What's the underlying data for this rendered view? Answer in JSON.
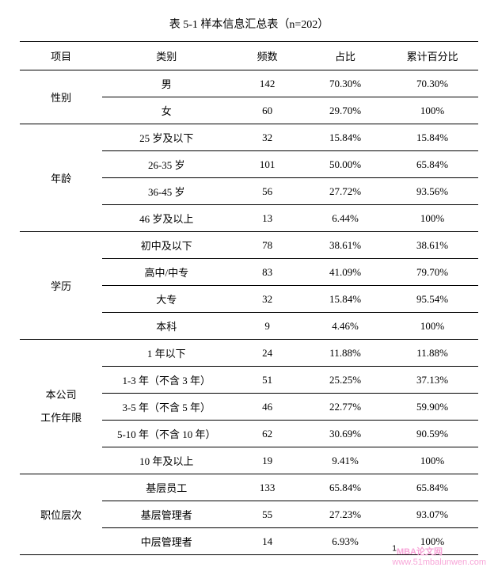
{
  "title": "表 5-1  样本信息汇总表（n=202）",
  "headers": {
    "group": "项目",
    "category": "类别",
    "freq": "频数",
    "pct": "占比",
    "cum": "累计百分比"
  },
  "groups": [
    {
      "name": "性别",
      "rows": [
        {
          "cat": "男",
          "freq": "142",
          "pct": "70.30%",
          "cum": "70.30%"
        },
        {
          "cat": "女",
          "freq": "60",
          "pct": "29.70%",
          "cum": "100%"
        }
      ]
    },
    {
      "name": "年龄",
      "rows": [
        {
          "cat": "25 岁及以下",
          "freq": "32",
          "pct": "15.84%",
          "cum": "15.84%"
        },
        {
          "cat": "26-35 岁",
          "freq": "101",
          "pct": "50.00%",
          "cum": "65.84%"
        },
        {
          "cat": "36-45 岁",
          "freq": "56",
          "pct": "27.72%",
          "cum": "93.56%"
        },
        {
          "cat": "46 岁及以上",
          "freq": "13",
          "pct": "6.44%",
          "cum": "100%"
        }
      ]
    },
    {
      "name": "学历",
      "rows": [
        {
          "cat": "初中及以下",
          "freq": "78",
          "pct": "38.61%",
          "cum": "38.61%"
        },
        {
          "cat": "高中/中专",
          "freq": "83",
          "pct": "41.09%",
          "cum": "79.70%"
        },
        {
          "cat": "大专",
          "freq": "32",
          "pct": "15.84%",
          "cum": "95.54%"
        },
        {
          "cat": "本科",
          "freq": "9",
          "pct": "4.46%",
          "cum": "100%"
        }
      ]
    },
    {
      "name": "本公司\n工作年限",
      "rows": [
        {
          "cat": "1 年以下",
          "freq": "24",
          "pct": "11.88%",
          "cum": "11.88%"
        },
        {
          "cat": "1-3 年（不含 3 年）",
          "freq": "51",
          "pct": "25.25%",
          "cum": "37.13%"
        },
        {
          "cat": "3-5 年（不含 5 年）",
          "freq": "46",
          "pct": "22.77%",
          "cum": "59.90%"
        },
        {
          "cat": "5-10 年（不含 10 年）",
          "freq": "62",
          "pct": "30.69%",
          "cum": "90.59%"
        },
        {
          "cat": "10 年及以上",
          "freq": "19",
          "pct": "9.41%",
          "cum": "100%"
        }
      ]
    },
    {
      "name": "职位层次",
      "rows": [
        {
          "cat": "基层员工",
          "freq": "133",
          "pct": "65.84%",
          "cum": "65.84%"
        },
        {
          "cat": "基层管理者",
          "freq": "55",
          "pct": "27.23%",
          "cum": "93.07%"
        },
        {
          "cat": "中层管理者",
          "freq": "14",
          "pct": "6.93%",
          "cum": "100%"
        }
      ]
    }
  ],
  "watermark_sup": "1",
  "watermark_main": "MBA论文网",
  "watermark_url": "www.51mbalunwen.com",
  "colors": {
    "text": "#000000",
    "bg": "#ffffff",
    "watermark": "#f7a6d8"
  }
}
